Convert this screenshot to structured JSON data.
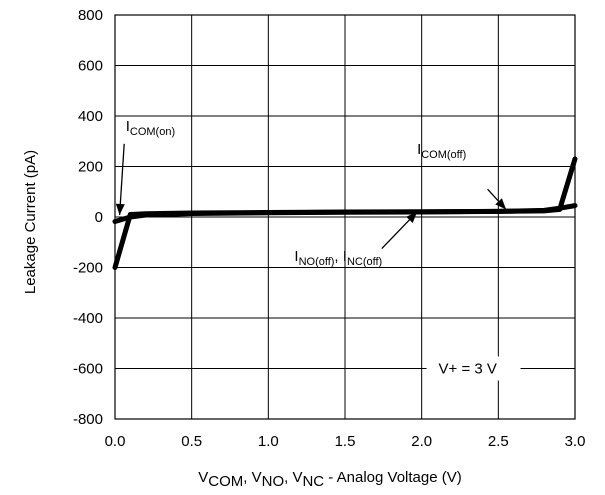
{
  "chart_data": {
    "type": "line",
    "title": "",
    "xlabel": {
      "parts": [
        {
          "t": "V"
        },
        {
          "t": "COM",
          "sub": true
        },
        {
          "t": ", V"
        },
        {
          "t": "NO",
          "sub": true
        },
        {
          "t": ", V"
        },
        {
          "t": "NC",
          "sub": true
        },
        {
          "t": " - Analog Voltage (V)"
        }
      ]
    },
    "ylabel": "Leakage Current  (pA)",
    "xlim": [
      0,
      3
    ],
    "ylim": [
      -800,
      800
    ],
    "x_ticks": [
      "0.0",
      "0.5",
      "1.0",
      "1.5",
      "2.0",
      "2.5",
      "3.0"
    ],
    "x_tick_values": [
      0,
      0.5,
      1.0,
      1.5,
      2.0,
      2.5,
      3.0
    ],
    "y_ticks": [
      "800",
      "600",
      "400",
      "200",
      "0",
      "-200",
      "-400",
      "-600",
      "-800"
    ],
    "y_tick_values": [
      800,
      600,
      400,
      200,
      0,
      -200,
      -400,
      -600,
      -800
    ],
    "grid": true,
    "series": [
      {
        "x": [
          0.0,
          0.1,
          0.2,
          0.5,
          1.0,
          1.5,
          2.0,
          2.5,
          2.8,
          2.9,
          3.0
        ],
        "y": [
          -200,
          10,
          13,
          16,
          18,
          20,
          21,
          22,
          24,
          30,
          230
        ]
      },
      {
        "x": [
          0.0,
          0.1,
          0.2,
          0.5,
          1.0,
          1.5,
          2.0,
          2.5,
          2.8,
          2.9,
          3.0
        ],
        "y": [
          -18,
          0,
          8,
          14,
          17,
          19,
          20,
          22,
          26,
          35,
          45
        ]
      }
    ],
    "annotations": [
      {
        "name": "annotation-icom-on",
        "parts": [
          {
            "t": "I"
          },
          {
            "t": "COM(on)",
            "sub": true
          }
        ],
        "text_pos": [
          0.07,
          340
        ],
        "arrow_from": [
          0.06,
          290
        ],
        "arrow_to": [
          0.03,
          8
        ]
      },
      {
        "name": "annotation-icom-off",
        "parts": [
          {
            "t": "I"
          },
          {
            "t": "COM(off)",
            "sub": true
          }
        ],
        "text_pos": [
          1.97,
          250
        ],
        "arrow_from": [
          2.43,
          110
        ],
        "arrow_to": [
          2.55,
          30
        ]
      },
      {
        "name": "annotation-ino-nc-off",
        "parts": [
          {
            "t": "I"
          },
          {
            "t": "NO(off)",
            "sub": true
          },
          {
            "t": ", I"
          },
          {
            "t": "NC(off)",
            "sub": true
          }
        ],
        "text_pos": [
          1.17,
          -175
        ],
        "arrow_from": [
          1.74,
          -125
        ],
        "arrow_to": [
          1.97,
          20
        ]
      }
    ],
    "legend_box": {
      "label": "V+ = 3 V"
    }
  }
}
